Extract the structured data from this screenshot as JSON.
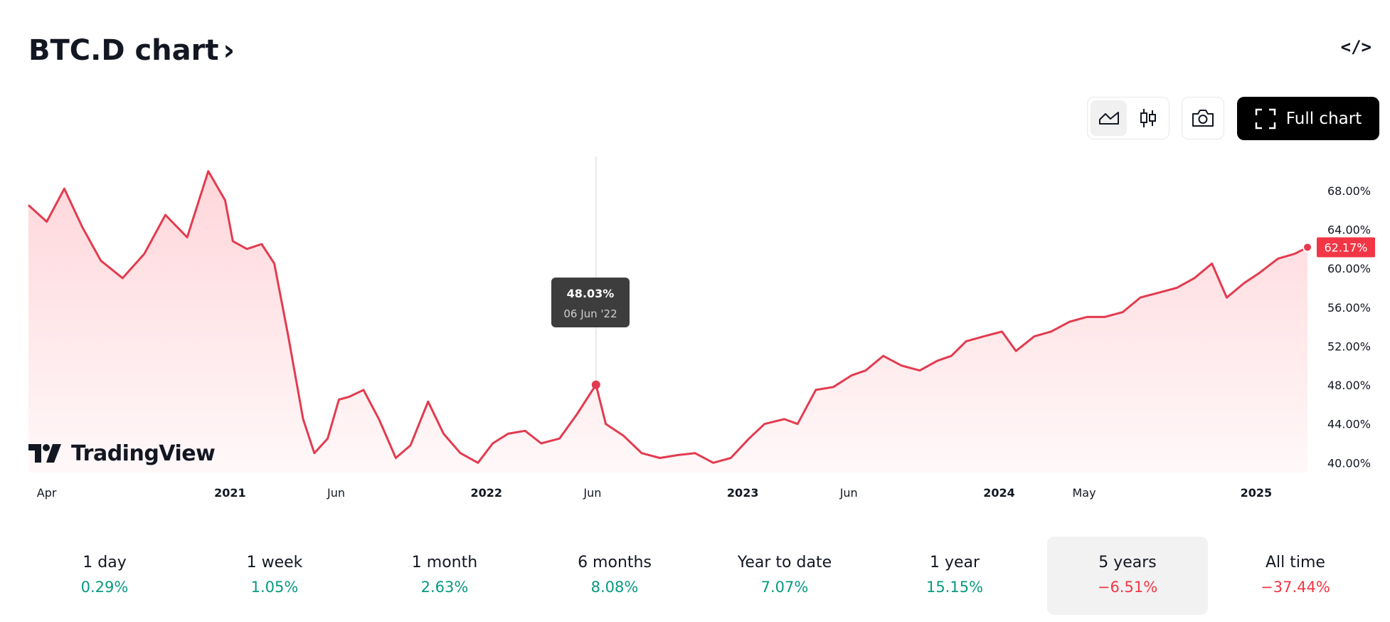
{
  "header": {
    "title": "BTC.D chart",
    "embed_label": "</>"
  },
  "toolbar": {
    "line_icon": "area-chart-icon",
    "candle_icon": "candlestick-icon",
    "camera_icon": "camera-icon",
    "full_chart_label": "Full chart"
  },
  "logo": {
    "text": "TradingView"
  },
  "tooltip": {
    "value": "48.03%",
    "date": "06 Jun '22"
  },
  "colors": {
    "line": "#e23b4f",
    "area_top": "#ffd6da",
    "area_bottom": "#fff8f9",
    "price_tag": "#f23645",
    "positive": "#089981",
    "negative": "#f23645"
  },
  "chart_data": {
    "type": "area",
    "title": "",
    "xlabel": "",
    "ylabel": "",
    "ylim": [
      39.0,
      71.5
    ],
    "y_ticks": [
      "40.00%",
      "44.00%",
      "48.00%",
      "52.00%",
      "56.00%",
      "60.00%",
      "64.00%",
      "68.00%"
    ],
    "x_ticks": [
      {
        "label": "Apr",
        "date": "2020-04-01",
        "major": false
      },
      {
        "label": "2021",
        "date": "2021-01-01",
        "major": true
      },
      {
        "label": "Jun",
        "date": "2021-06-01",
        "major": false
      },
      {
        "label": "2022",
        "date": "2022-01-01",
        "major": true
      },
      {
        "label": "Jun",
        "date": "2022-06-01",
        "major": false
      },
      {
        "label": "2023",
        "date": "2023-01-01",
        "major": true
      },
      {
        "label": "Jun",
        "date": "2023-06-01",
        "major": false
      },
      {
        "label": "2024",
        "date": "2024-01-01",
        "major": true
      },
      {
        "label": "May",
        "date": "2024-05-01",
        "major": false
      },
      {
        "label": "2025",
        "date": "2025-01-01",
        "major": true
      }
    ],
    "last_value_label": "62.17%",
    "highlight": {
      "date": "2022-06-06",
      "value": 48.03
    },
    "series": [
      {
        "x": [
          "2020-03-20",
          "2020-04-15",
          "2020-05-10",
          "2020-06-05",
          "2020-07-01",
          "2020-08-01",
          "2020-09-01",
          "2020-10-01",
          "2020-11-01",
          "2020-12-01",
          "2020-12-25",
          "2021-01-05",
          "2021-01-25",
          "2021-02-15",
          "2021-03-05",
          "2021-03-25",
          "2021-04-15",
          "2021-05-01",
          "2021-05-20",
          "2021-06-05",
          "2021-06-20",
          "2021-07-10",
          "2021-08-01",
          "2021-08-25",
          "2021-09-15",
          "2021-10-10",
          "2021-11-01",
          "2021-11-25",
          "2021-12-20",
          "2022-01-10",
          "2022-02-01",
          "2022-02-25",
          "2022-03-20",
          "2022-04-15",
          "2022-05-10",
          "2022-06-06",
          "2022-06-20",
          "2022-07-15",
          "2022-08-10",
          "2022-09-05",
          "2022-10-01",
          "2022-10-25",
          "2022-11-20",
          "2022-12-15",
          "2023-01-10",
          "2023-02-01",
          "2023-03-01",
          "2023-03-20",
          "2023-04-15",
          "2023-05-10",
          "2023-06-05",
          "2023-06-25",
          "2023-07-20",
          "2023-08-15",
          "2023-09-10",
          "2023-10-05",
          "2023-10-25",
          "2023-11-15",
          "2023-12-10",
          "2024-01-05",
          "2024-01-25",
          "2024-02-20",
          "2024-03-15",
          "2024-04-10",
          "2024-05-05",
          "2024-05-30",
          "2024-06-25",
          "2024-07-20",
          "2024-08-15",
          "2024-09-10",
          "2024-10-05",
          "2024-10-30",
          "2024-11-20",
          "2024-12-15",
          "2025-01-05",
          "2025-02-01",
          "2025-02-25",
          "2025-03-15"
        ],
        "y": [
          66.5,
          64.8,
          68.2,
          64.2,
          60.8,
          59.0,
          61.5,
          65.5,
          63.2,
          70.0,
          67.0,
          62.8,
          62.0,
          62.5,
          60.5,
          53.0,
          44.5,
          41.0,
          42.5,
          46.5,
          46.8,
          47.5,
          44.5,
          40.5,
          41.8,
          46.3,
          43.0,
          41.0,
          40.0,
          42.0,
          43.0,
          43.3,
          42.0,
          42.5,
          45.0,
          48.03,
          44.0,
          42.8,
          41.0,
          40.5,
          40.8,
          41.0,
          40.0,
          40.5,
          42.5,
          44.0,
          44.5,
          44.0,
          47.5,
          47.8,
          49.0,
          49.5,
          51.0,
          50.0,
          49.5,
          50.5,
          51.0,
          52.5,
          53.0,
          53.5,
          51.5,
          53.0,
          53.5,
          54.5,
          55.0,
          55.0,
          55.5,
          57.0,
          57.5,
          58.0,
          59.0,
          60.5,
          57.0,
          58.5,
          59.5,
          61.0,
          61.5,
          62.17
        ]
      }
    ]
  },
  "periods": [
    {
      "label": "1 day",
      "value": "0.29%",
      "trend": "up"
    },
    {
      "label": "1 week",
      "value": "1.05%",
      "trend": "up"
    },
    {
      "label": "1 month",
      "value": "2.63%",
      "trend": "up"
    },
    {
      "label": "6 months",
      "value": "8.08%",
      "trend": "up"
    },
    {
      "label": "Year to date",
      "value": "7.07%",
      "trend": "up"
    },
    {
      "label": "1 year",
      "value": "15.15%",
      "trend": "up"
    },
    {
      "label": "5 years",
      "value": "−6.51%",
      "trend": "down",
      "active": true
    },
    {
      "label": "All time",
      "value": "−37.44%",
      "trend": "down"
    }
  ]
}
